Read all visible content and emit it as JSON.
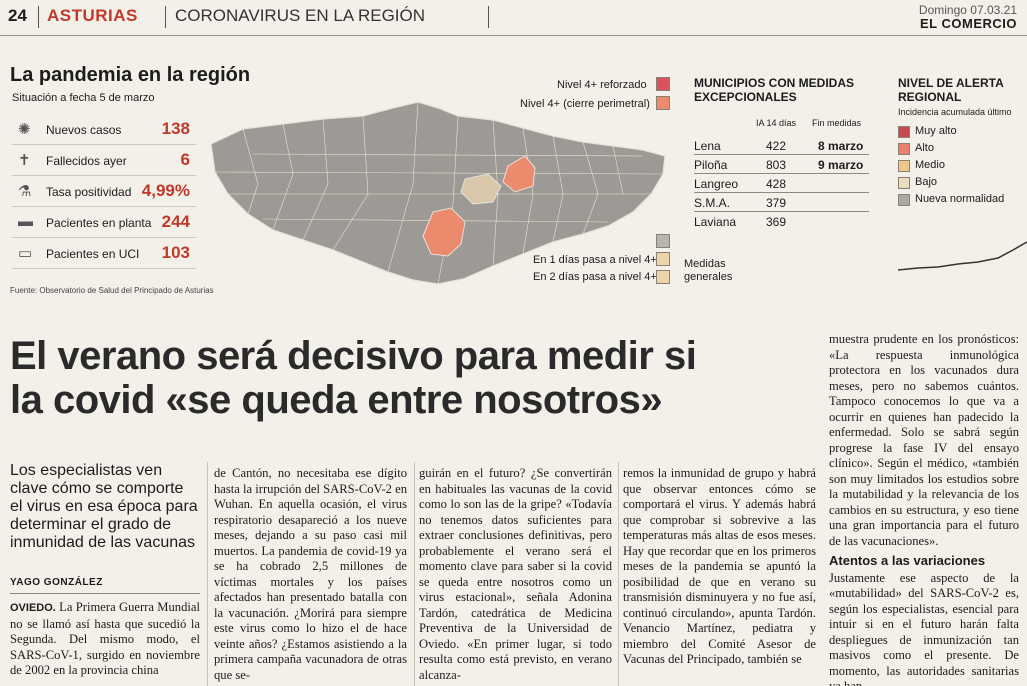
{
  "masthead": {
    "page": "24",
    "section": "ASTURIAS",
    "subsection": "CORONAVIRUS EN LA REGIÓN",
    "date": "Domingo 07.03.21",
    "paper": "EL COMERCIO"
  },
  "info": {
    "title": "La pandemia en la región",
    "subtitle": "Situación a fecha 5 de marzo",
    "stats": [
      {
        "icon": "virus-icon",
        "label": "Nuevos casos",
        "value": "138"
      },
      {
        "icon": "tombstone-icon",
        "label": "Fallecidos ayer",
        "value": "6"
      },
      {
        "icon": "test-tube-icon",
        "label": "Tasa positividad",
        "value": "4,99%"
      },
      {
        "icon": "hospital-bed-icon",
        "label": "Pacientes en planta",
        "value": "244"
      },
      {
        "icon": "icu-bed-icon",
        "label": "Pacientes en UCI",
        "value": "103"
      }
    ],
    "source": "Fuente: Observatorio de Salud del Principado de Asturias",
    "map_legend": {
      "reinforced": "Nivel 4+ reforzado",
      "perimeter": "Nivel 4+ (cierre perimetral)",
      "in1": "En 1 días  pasa a nivel 4+",
      "in2": "En 2 días  pasa a nivel 4+",
      "general": "Medidas generales"
    },
    "colors": {
      "reinforced": "#d8525a",
      "perimeter": "#eb8a6d",
      "gray": "#b8b4ae",
      "light": "#ecd4a6",
      "map": "#9d9a95"
    },
    "municipios": {
      "title": "MUNICIPIOS CON MEDIDAS EXCEPCIONALES",
      "col_ia": "IA 14 días",
      "col_fin": "Fin medidas",
      "rows": [
        {
          "name": "Lena",
          "ia": "422",
          "fin": "8 marzo"
        },
        {
          "name": "Piloña",
          "ia": "803",
          "fin": "9 marzo"
        },
        {
          "name": "Langreo",
          "ia": "428",
          "fin": ""
        },
        {
          "name": "S.M.A.",
          "ia": "379",
          "fin": ""
        },
        {
          "name": "Laviana",
          "ia": "369",
          "fin": ""
        }
      ]
    },
    "alert": {
      "title": "NIVEL DE ALERTA REGIONAL",
      "subtitle": "Incidencia acumulada último",
      "levels": [
        {
          "label": "Muy alto",
          "color": "#c9474f"
        },
        {
          "label": "Alto",
          "color": "#e9826a"
        },
        {
          "label": "Medio",
          "color": "#f0c78a"
        },
        {
          "label": "Bajo",
          "color": "#e8dcc0"
        },
        {
          "label": "Nueva normalidad",
          "color": "#aba9a6"
        }
      ]
    }
  },
  "article": {
    "headline_1": "El verano será decisivo para medir si",
    "headline_2": "la covid «se queda entre nosotros»",
    "lead": "Los especialistas ven clave cómo se comporte el virus en esa época para determinar el grado de inmunidad de las vacunas",
    "byline": "YAGO GONZÁLEZ",
    "col1_dateline": "OVIEDO.",
    "col1": " La Primera Guerra Mundial no se llamó así hasta que sucedió la Segunda. Del mismo modo, el SARS-CoV-1, surgido en noviembre de 2002 en la provincia china",
    "col2": "de Cantón, no necesitaba ese dígito hasta la irrupción del SARS-CoV-2 en Wuhan. En aquella ocasión, el virus respiratorio desapareció a los nueve meses, dejando a su paso casi mil muertos. La pandemia de covid-19 ya se ha cobrado 2,5 millones de víctimas mortales y los países afectados han presentado batalla con la vacunación. ¿Morirá para siempre este virus como lo hizo el de hace veinte años? ¿Estamos asistiendo a la primera campaña vacunadora de otras que se-",
    "col3": "guirán en el futuro? ¿Se convertirán en habituales las vacunas de la covid como lo son las de la gripe? «Todavía no tenemos datos suficientes para extraer conclusiones definitivas, pero probablemente el verano será el momento clave para saber si la covid se queda entre nosotros como un virus estacional», señala Adonina Tardón, catedrática de Medicina Preventiva de la Universidad de Oviedo. «En primer lugar, si todo resulta como está previsto, en verano alcanza-",
    "col4": "remos la inmunidad de grupo y habrá que observar entonces cómo se comportará el virus. Y además habrá que comprobar si sobrevive a las temperaturas más altas de esos meses. Hay que recordar que en los primeros meses de la pandemia se apuntó la posibilidad de que en verano su transmisión disminuyera y no fue así, continuó circulando», apunta Tardón. Venancio Martínez, pediatra y miembro del Comité Asesor de Vacunas del Principado, también se",
    "col5": "muestra prudente en los pronósticos: «La respuesta inmunológica protectora en los vacunados dura meses, pero no sabemos cuántos. Tampoco conocemos lo que va a ocurrir en quienes han padecido la enfermedad. Solo se sabrá según progrese la fase IV del ensayo clínico». Según el médico, «también son muy limitados los estudios sobre la mutabilidad y la relevancia de los cambios en su estructura, y eso tiene una gran importancia para el futuro de las vacunaciones».",
    "subhead": "Atentos a las variaciones",
    "col5b": "Justamente ese aspecto de la «mutabilidad» del SARS-CoV-2 es, según los especialistas, esencial para intuir si en el futuro harán falta despliegues de inmunización tan masivos como el presente. De momento, las autoridades sanitarias ya han"
  }
}
